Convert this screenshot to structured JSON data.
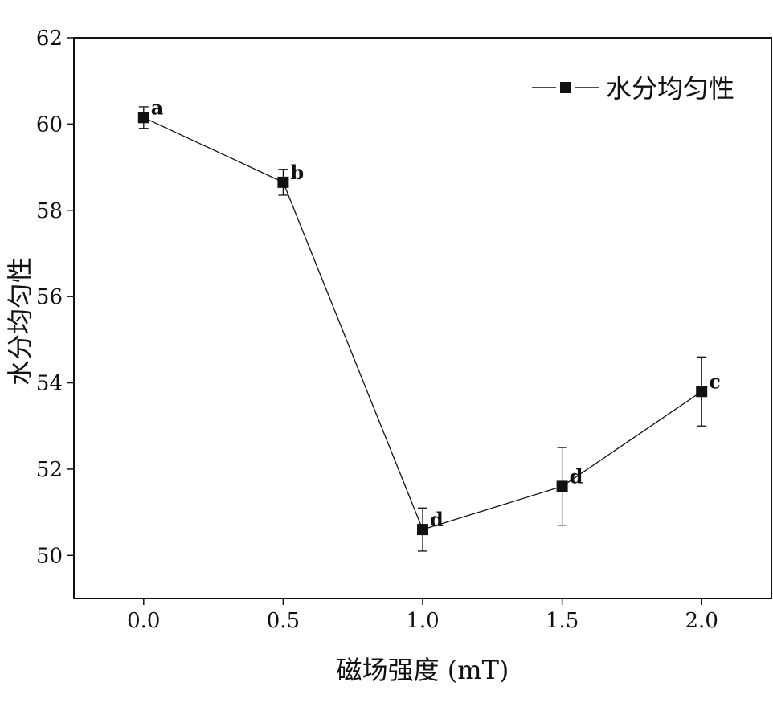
{
  "chart_data": {
    "type": "line",
    "x": [
      0.0,
      0.5,
      1.0,
      1.5,
      2.0
    ],
    "x_tick_labels": [
      "0.0",
      "0.5",
      "1.0",
      "1.5",
      "2.0"
    ],
    "series": [
      {
        "name": "水分均匀性",
        "values": [
          60.15,
          58.65,
          50.6,
          51.6,
          53.8
        ],
        "error": [
          0.25,
          0.3,
          0.5,
          0.9,
          0.8
        ],
        "point_labels": [
          "a",
          "b",
          "d",
          "d",
          "c"
        ],
        "color": "#111111",
        "marker": "square"
      }
    ],
    "xlabel": "磁场强度 (mT)",
    "ylabel": "水分均匀性",
    "xlim": [
      -0.25,
      2.25
    ],
    "ylim": [
      49,
      62
    ],
    "y_ticks": [
      50,
      52,
      54,
      56,
      58,
      60,
      62
    ],
    "y_tick_labels": [
      "50",
      "52",
      "54",
      "56",
      "58",
      "60",
      "62"
    ],
    "legend_position": "top-right",
    "grid": false
  }
}
